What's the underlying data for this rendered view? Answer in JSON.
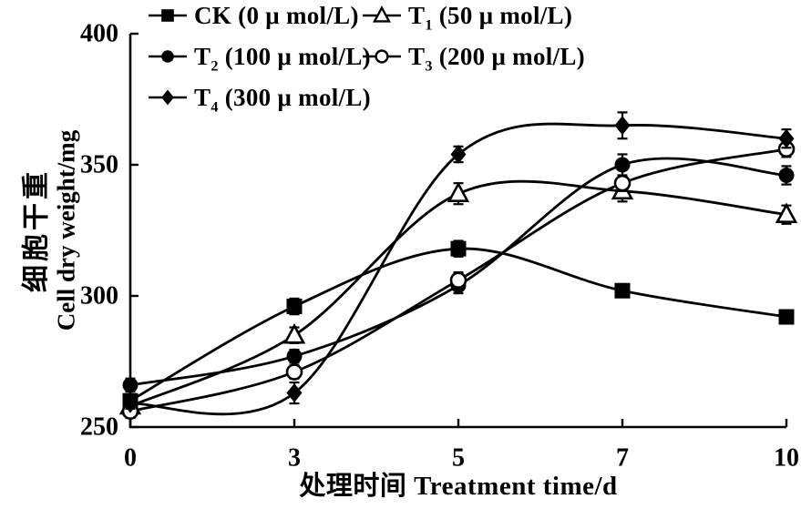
{
  "figure": {
    "background": "#ffffff",
    "ink_color": "#000000"
  },
  "axes": {
    "y_label_zh": "细胞干重",
    "y_label_en": "Cell dry weight/mg",
    "x_label": "处理时间 Treatment time/d"
  },
  "chart_data": {
    "type": "line",
    "title": "",
    "xlabel": "处理时间 Treatment time/d",
    "ylabel": "细胞干重 Cell dry weight/mg",
    "x": [
      0,
      3,
      5,
      7,
      10
    ],
    "x_tick_labels": [
      "0",
      "3",
      "5",
      "7",
      "10"
    ],
    "y_ticks": [
      250,
      300,
      350,
      400
    ],
    "ylim": [
      250,
      400
    ],
    "grid": false,
    "legend_position": "top",
    "layout_hint": "x ticks equally spaced (category-like); only left and bottom axis lines; inward ticks; black-and-white markers with vertical error bars; smooth spline curves",
    "series": [
      {
        "name": "CK (0 μ mol/L)",
        "marker": "square-filled",
        "values": [
          260,
          296,
          318,
          302,
          292
        ],
        "errors": [
          2,
          3,
          3,
          2.5,
          2.5
        ]
      },
      {
        "name": "T1 (50 μ mol/L)",
        "marker": "triangle-open",
        "values": [
          258,
          285,
          339,
          340,
          331
        ],
        "errors": [
          2,
          3,
          4,
          4,
          3.5
        ]
      },
      {
        "name": "T2 (100 μ mol/L)",
        "marker": "circle-filled",
        "values": [
          266,
          277,
          304,
          350,
          346
        ],
        "errors": [
          2.5,
          2.5,
          3,
          4,
          3.5
        ]
      },
      {
        "name": "T3 (200 μ mol/L)",
        "marker": "circle-open",
        "values": [
          256,
          271,
          306,
          343,
          356
        ],
        "errors": [
          2.5,
          2.5,
          3,
          3,
          3
        ]
      },
      {
        "name": "T4 (300 μ mol/L)",
        "marker": "diamond-filled",
        "values": [
          259,
          263,
          354,
          365,
          360
        ],
        "errors": [
          2,
          4,
          3,
          5,
          3.5
        ]
      }
    ]
  },
  "legend": {
    "items": [
      {
        "prefix": "CK",
        "sub": "",
        "suffix": " (0 μ mol/L)",
        "marker": "square-filled"
      },
      {
        "prefix": "T",
        "sub": "1",
        "suffix": " (50 μ mol/L)",
        "marker": "triangle-open"
      },
      {
        "prefix": "T",
        "sub": "2",
        "suffix": " (100 μ mol/L)",
        "marker": "circle-filled"
      },
      {
        "prefix": "T",
        "sub": "3",
        "suffix": " (200 μ mol/L)",
        "marker": "circle-open"
      },
      {
        "prefix": "T",
        "sub": "4",
        "suffix": " (300 μ mol/L)",
        "marker": "diamond-filled"
      }
    ]
  }
}
